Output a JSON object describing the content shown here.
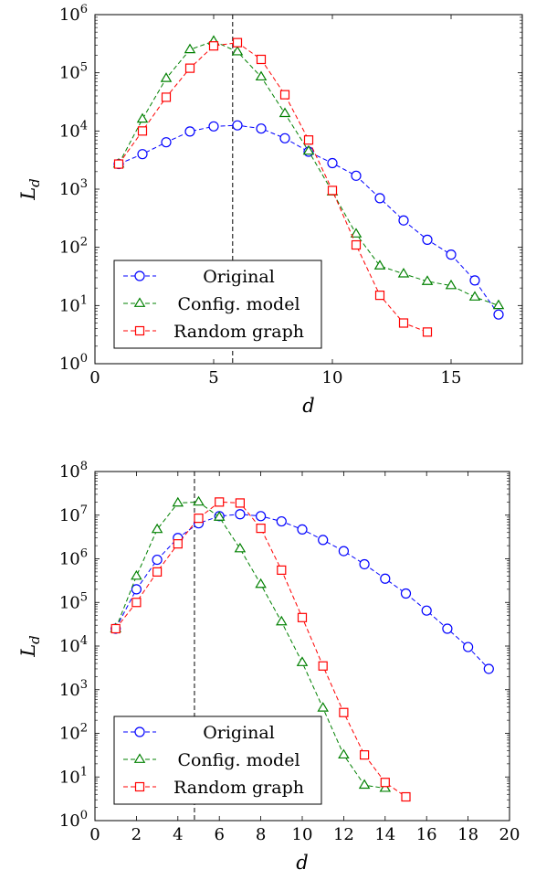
{
  "chart_data": [
    {
      "type": "line",
      "title": "",
      "xlabel": "d",
      "ylabel": "L_d",
      "yscale": "log",
      "xlim": [
        0,
        18
      ],
      "ylim": [
        1,
        1000000
      ],
      "xticks": [
        0,
        5,
        10,
        15
      ],
      "yticks": [
        {
          "base": "10",
          "exp": "0"
        },
        {
          "base": "10",
          "exp": "1"
        },
        {
          "base": "10",
          "exp": "2"
        },
        {
          "base": "10",
          "exp": "3"
        },
        {
          "base": "10",
          "exp": "4"
        },
        {
          "base": "10",
          "exp": "5"
        },
        {
          "base": "10",
          "exp": "6"
        }
      ],
      "vline": 5.8,
      "grid": false,
      "legend": "bottom-left",
      "series": [
        {
          "name": "Original",
          "color": "#0000ff",
          "marker": "circle",
          "x": [
            1,
            2,
            3,
            4,
            5,
            6,
            7,
            8,
            9,
            10,
            11,
            12,
            13,
            14,
            15,
            16,
            17
          ],
          "values": [
            2700,
            4000,
            6400,
            9800,
            12000,
            12500,
            11000,
            7500,
            4400,
            2800,
            1700,
            700,
            290,
            135,
            75,
            27,
            7
          ]
        },
        {
          "name": "Config. model",
          "color": "#008000",
          "marker": "triangle",
          "x": [
            1,
            2,
            3,
            4,
            5,
            6,
            7,
            8,
            9,
            10,
            11,
            12,
            13,
            14,
            15,
            16,
            17
          ],
          "values": [
            2700,
            16000,
            80000,
            250000,
            350000,
            230000,
            85000,
            20000,
            4500,
            900,
            170,
            48,
            35,
            26,
            22,
            14,
            10
          ]
        },
        {
          "name": "Random graph",
          "color": "#ff0000",
          "marker": "square",
          "x": [
            1,
            2,
            3,
            4,
            5,
            6,
            7,
            8,
            9,
            10,
            11,
            12,
            13,
            14
          ],
          "values": [
            2700,
            10000,
            38000,
            120000,
            290000,
            330000,
            170000,
            42000,
            7000,
            950,
            110,
            15,
            5,
            3.5
          ]
        }
      ]
    },
    {
      "type": "line",
      "title": "",
      "xlabel": "d",
      "ylabel": "L_d",
      "yscale": "log",
      "xlim": [
        0,
        20
      ],
      "ylim": [
        1,
        100000000
      ],
      "xticks": [
        0,
        2,
        4,
        6,
        8,
        10,
        12,
        14,
        16,
        18,
        20
      ],
      "yticks": [
        {
          "base": "10",
          "exp": "0"
        },
        {
          "base": "10",
          "exp": "1"
        },
        {
          "base": "10",
          "exp": "2"
        },
        {
          "base": "10",
          "exp": "3"
        },
        {
          "base": "10",
          "exp": "4"
        },
        {
          "base": "10",
          "exp": "5"
        },
        {
          "base": "10",
          "exp": "6"
        },
        {
          "base": "10",
          "exp": "7"
        },
        {
          "base": "10",
          "exp": "8"
        }
      ],
      "vline": 4.8,
      "grid": false,
      "legend": "bottom-left",
      "series": [
        {
          "name": "Original",
          "color": "#0000ff",
          "marker": "circle",
          "x": [
            1,
            2,
            3,
            4,
            5,
            6,
            7,
            8,
            9,
            10,
            11,
            12,
            13,
            14,
            15,
            16,
            17,
            18,
            19
          ],
          "values": [
            25000,
            200000,
            950000,
            3000000,
            6500000,
            9500000,
            10500000,
            9500000,
            7200000,
            4700000,
            2700000,
            1500000,
            750000,
            350000,
            160000,
            65000,
            25000,
            9500,
            3000
          ]
        },
        {
          "name": "Config. model",
          "color": "#008000",
          "marker": "triangle",
          "x": [
            1,
            2,
            3,
            4,
            5,
            6,
            7,
            8,
            9,
            10,
            11,
            12,
            13,
            14
          ],
          "values": [
            25000,
            400000,
            4700000,
            19000000,
            20000000,
            9000000,
            1700000,
            260000,
            36000,
            4200,
            380,
            32,
            6.5,
            5.5
          ]
        },
        {
          "name": "Random graph",
          "color": "#ff0000",
          "marker": "square",
          "x": [
            1,
            2,
            3,
            4,
            5,
            6,
            7,
            8,
            9,
            10,
            11,
            12,
            13,
            14,
            15
          ],
          "values": [
            25000,
            100000,
            500000,
            2200000,
            8500000,
            20000000,
            19000000,
            5000000,
            550000,
            45000,
            3500,
            300,
            32,
            7.5,
            3.5
          ]
        }
      ]
    }
  ]
}
